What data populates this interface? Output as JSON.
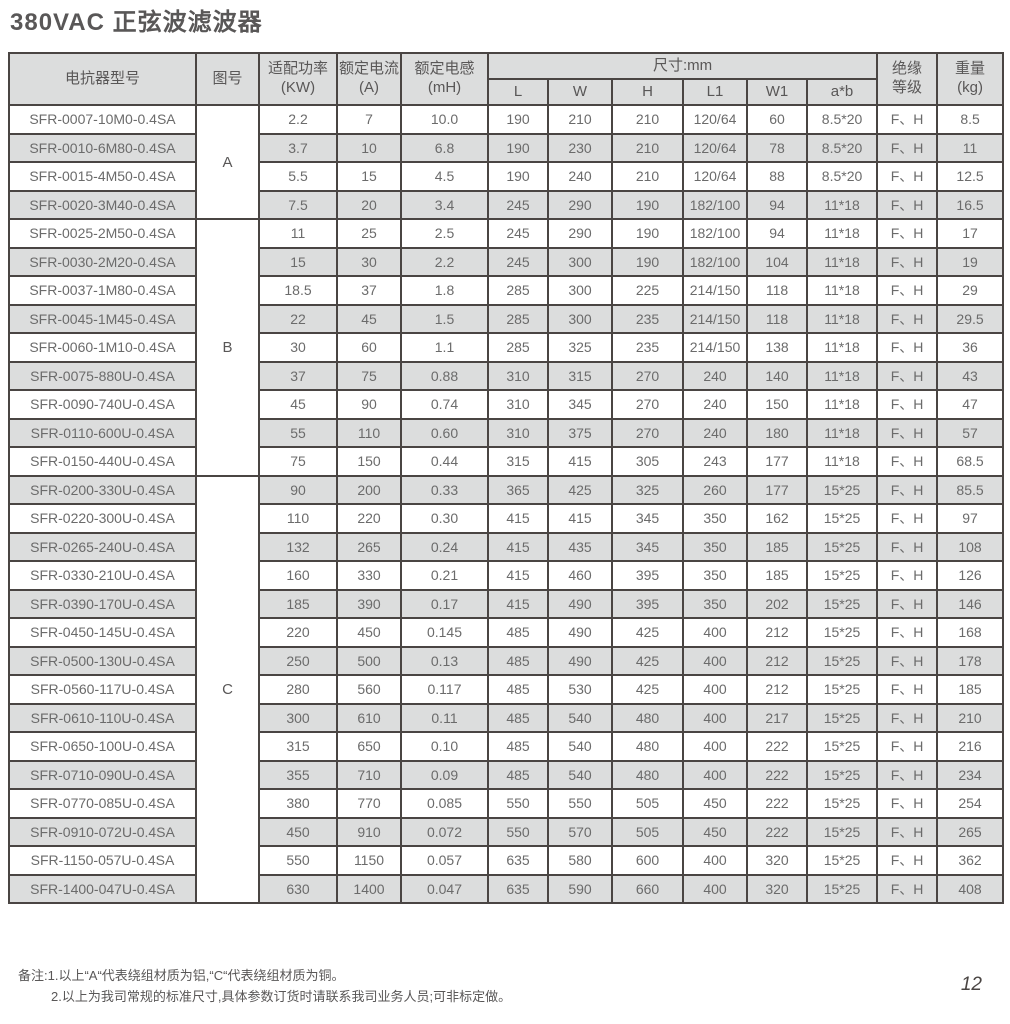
{
  "page": {
    "title": "380VAC 正弦波滤波器",
    "page_number": "12"
  },
  "table": {
    "columns": {
      "model": "电抗器型号",
      "figure": "图号",
      "power_l1": "适配功率",
      "power_l2": "(KW)",
      "current_l1": "额定电流",
      "current_l2": "(A)",
      "inductance_l1": "额定电感",
      "inductance_l2": "(mH)",
      "size_group": "尺寸:mm",
      "size_cols": [
        "L",
        "W",
        "H",
        "L1",
        "W1",
        "a*b"
      ],
      "insulation_l1": "绝缘",
      "insulation_l2": "等级",
      "weight_l1": "重量",
      "weight_l2": "(kg)"
    },
    "groups": [
      {
        "label": "A",
        "span": 4
      },
      {
        "label": "B",
        "span": 9
      },
      {
        "label": "C",
        "span": 15
      }
    ],
    "rows": [
      [
        "SFR-0007-10M0-0.4SA",
        "2.2",
        "7",
        "10.0",
        "190",
        "210",
        "210",
        "120/64",
        "60",
        "8.5*20",
        "F、H",
        "8.5"
      ],
      [
        "SFR-0010-6M80-0.4SA",
        "3.7",
        "10",
        "6.8",
        "190",
        "230",
        "210",
        "120/64",
        "78",
        "8.5*20",
        "F、H",
        "11"
      ],
      [
        "SFR-0015-4M50-0.4SA",
        "5.5",
        "15",
        "4.5",
        "190",
        "240",
        "210",
        "120/64",
        "88",
        "8.5*20",
        "F、H",
        "12.5"
      ],
      [
        "SFR-0020-3M40-0.4SA",
        "7.5",
        "20",
        "3.4",
        "245",
        "290",
        "190",
        "182/100",
        "94",
        "11*18",
        "F、H",
        "16.5"
      ],
      [
        "SFR-0025-2M50-0.4SA",
        "11",
        "25",
        "2.5",
        "245",
        "290",
        "190",
        "182/100",
        "94",
        "11*18",
        "F、H",
        "17"
      ],
      [
        "SFR-0030-2M20-0.4SA",
        "15",
        "30",
        "2.2",
        "245",
        "300",
        "190",
        "182/100",
        "104",
        "11*18",
        "F、H",
        "19"
      ],
      [
        "SFR-0037-1M80-0.4SA",
        "18.5",
        "37",
        "1.8",
        "285",
        "300",
        "225",
        "214/150",
        "118",
        "11*18",
        "F、H",
        "29"
      ],
      [
        "SFR-0045-1M45-0.4SA",
        "22",
        "45",
        "1.5",
        "285",
        "300",
        "235",
        "214/150",
        "118",
        "11*18",
        "F、H",
        "29.5"
      ],
      [
        "SFR-0060-1M10-0.4SA",
        "30",
        "60",
        "1.1",
        "285",
        "325",
        "235",
        "214/150",
        "138",
        "11*18",
        "F、H",
        "36"
      ],
      [
        "SFR-0075-880U-0.4SA",
        "37",
        "75",
        "0.88",
        "310",
        "315",
        "270",
        "240",
        "140",
        "11*18",
        "F、H",
        "43"
      ],
      [
        "SFR-0090-740U-0.4SA",
        "45",
        "90",
        "0.74",
        "310",
        "345",
        "270",
        "240",
        "150",
        "11*18",
        "F、H",
        "47"
      ],
      [
        "SFR-0110-600U-0.4SA",
        "55",
        "110",
        "0.60",
        "310",
        "375",
        "270",
        "240",
        "180",
        "11*18",
        "F、H",
        "57"
      ],
      [
        "SFR-0150-440U-0.4SA",
        "75",
        "150",
        "0.44",
        "315",
        "415",
        "305",
        "243",
        "177",
        "11*18",
        "F、H",
        "68.5"
      ],
      [
        "SFR-0200-330U-0.4SA",
        "90",
        "200",
        "0.33",
        "365",
        "425",
        "325",
        "260",
        "177",
        "15*25",
        "F、H",
        "85.5"
      ],
      [
        "SFR-0220-300U-0.4SA",
        "110",
        "220",
        "0.30",
        "415",
        "415",
        "345",
        "350",
        "162",
        "15*25",
        "F、H",
        "97"
      ],
      [
        "SFR-0265-240U-0.4SA",
        "132",
        "265",
        "0.24",
        "415",
        "435",
        "345",
        "350",
        "185",
        "15*25",
        "F、H",
        "108"
      ],
      [
        "SFR-0330-210U-0.4SA",
        "160",
        "330",
        "0.21",
        "415",
        "460",
        "395",
        "350",
        "185",
        "15*25",
        "F、H",
        "126"
      ],
      [
        "SFR-0390-170U-0.4SA",
        "185",
        "390",
        "0.17",
        "415",
        "490",
        "395",
        "350",
        "202",
        "15*25",
        "F、H",
        "146"
      ],
      [
        "SFR-0450-145U-0.4SA",
        "220",
        "450",
        "0.145",
        "485",
        "490",
        "425",
        "400",
        "212",
        "15*25",
        "F、H",
        "168"
      ],
      [
        "SFR-0500-130U-0.4SA",
        "250",
        "500",
        "0.13",
        "485",
        "490",
        "425",
        "400",
        "212",
        "15*25",
        "F、H",
        "178"
      ],
      [
        "SFR-0560-117U-0.4SA",
        "280",
        "560",
        "0.117",
        "485",
        "530",
        "425",
        "400",
        "212",
        "15*25",
        "F、H",
        "185"
      ],
      [
        "SFR-0610-110U-0.4SA",
        "300",
        "610",
        "0.11",
        "485",
        "540",
        "480",
        "400",
        "217",
        "15*25",
        "F、H",
        "210"
      ],
      [
        "SFR-0650-100U-0.4SA",
        "315",
        "650",
        "0.10",
        "485",
        "540",
        "480",
        "400",
        "222",
        "15*25",
        "F、H",
        "216"
      ],
      [
        "SFR-0710-090U-0.4SA",
        "355",
        "710",
        "0.09",
        "485",
        "540",
        "480",
        "400",
        "222",
        "15*25",
        "F、H",
        "234"
      ],
      [
        "SFR-0770-085U-0.4SA",
        "380",
        "770",
        "0.085",
        "550",
        "550",
        "505",
        "450",
        "222",
        "15*25",
        "F、H",
        "254"
      ],
      [
        "SFR-0910-072U-0.4SA",
        "450",
        "910",
        "0.072",
        "550",
        "570",
        "505",
        "450",
        "222",
        "15*25",
        "F、H",
        "265"
      ],
      [
        "SFR-1150-057U-0.4SA",
        "550",
        "1150",
        "0.057",
        "635",
        "580",
        "600",
        "400",
        "320",
        "15*25",
        "F、H",
        "362"
      ],
      [
        "SFR-1400-047U-0.4SA",
        "630",
        "1400",
        "0.047",
        "635",
        "590",
        "660",
        "400",
        "320",
        "15*25",
        "F、H",
        "408"
      ]
    ]
  },
  "notes": {
    "line1": "备注:1.以上“A“代表绕组材质为铝,“C“代表绕组材质为铜。",
    "line2": "2.以上为我司常规的标准尺寸,具体参数订货时请联系我司业务人员;可非标定做。"
  }
}
